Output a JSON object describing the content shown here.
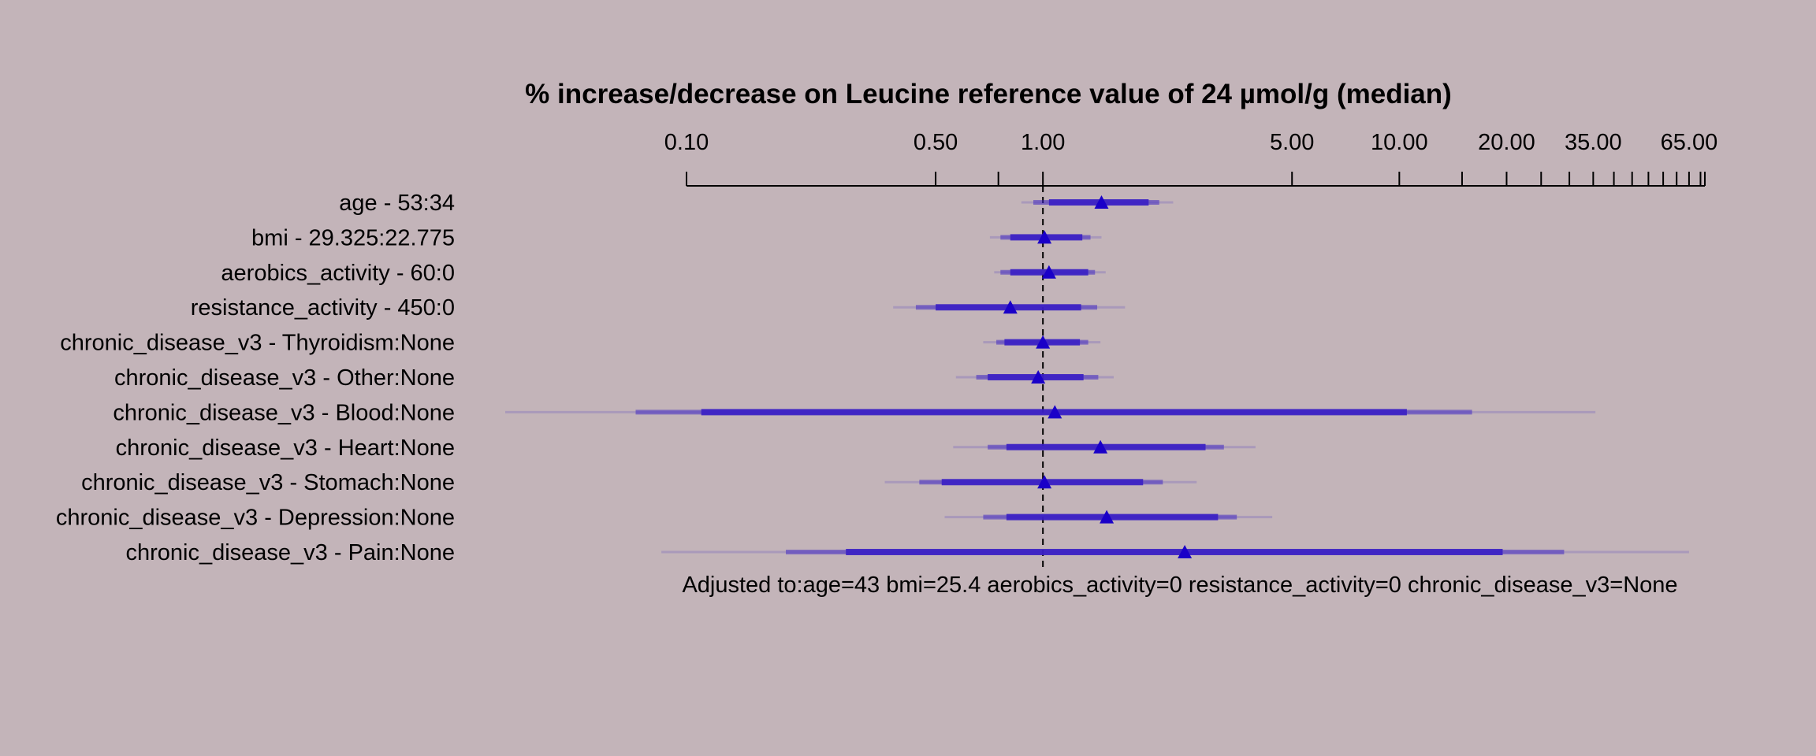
{
  "chart_data": {
    "type": "forest",
    "title": "% increase/decrease on Leucine reference value of 24 µmol/g (median)",
    "x_scale": "log",
    "xlim": [
      0.1,
      72
    ],
    "reference_line": 1.0,
    "tick_labels": [
      "0.10",
      "0.50",
      "1.00",
      "5.00",
      "10.00",
      "20.00",
      "35.00",
      "65.00"
    ],
    "tick_values": [
      0.1,
      0.5,
      1.0,
      5.0,
      10.0,
      20.0,
      35.0,
      65.0
    ],
    "minor_ticks": [
      0.75,
      15,
      25,
      30,
      40,
      45,
      50,
      55,
      60,
      70
    ],
    "marker_color": "#1a00c8",
    "bar_color": "#3a1fc4",
    "rows": [
      {
        "label": "age - 53:34",
        "estimate": 1.46,
        "ci_50": [
          1.04,
          1.98
        ],
        "ci_90": [
          0.94,
          2.12
        ],
        "ci_99": [
          0.87,
          2.32
        ]
      },
      {
        "label": "bmi - 29.325:22.775",
        "estimate": 1.01,
        "ci_50": [
          0.81,
          1.29
        ],
        "ci_90": [
          0.76,
          1.36
        ],
        "ci_99": [
          0.71,
          1.46
        ]
      },
      {
        "label": "aerobics_activity - 60:0",
        "estimate": 1.04,
        "ci_50": [
          0.81,
          1.34
        ],
        "ci_90": [
          0.76,
          1.4
        ],
        "ci_99": [
          0.73,
          1.5
        ]
      },
      {
        "label": "resistance_activity - 450:0",
        "estimate": 0.81,
        "ci_50": [
          0.5,
          1.28
        ],
        "ci_90": [
          0.44,
          1.42
        ],
        "ci_99": [
          0.38,
          1.7
        ]
      },
      {
        "label": "chronic_disease_v3 - Thyroidism:None",
        "estimate": 1.0,
        "ci_50": [
          0.78,
          1.27
        ],
        "ci_90": [
          0.74,
          1.34
        ],
        "ci_99": [
          0.68,
          1.45
        ]
      },
      {
        "label": "chronic_disease_v3 - Other:None",
        "estimate": 0.97,
        "ci_50": [
          0.7,
          1.3
        ],
        "ci_90": [
          0.65,
          1.43
        ],
        "ci_99": [
          0.57,
          1.58
        ]
      },
      {
        "label": "chronic_disease_v3 - Blood:None",
        "estimate": 1.08,
        "ci_50": [
          0.11,
          10.5
        ],
        "ci_90": [
          0.072,
          16.0
        ],
        "ci_99": [
          0.031,
          35.5
        ]
      },
      {
        "label": "chronic_disease_v3 - Heart:None",
        "estimate": 1.45,
        "ci_50": [
          0.79,
          2.86
        ],
        "ci_90": [
          0.7,
          3.22
        ],
        "ci_99": [
          0.56,
          3.95
        ]
      },
      {
        "label": "chronic_disease_v3 - Stomach:None",
        "estimate": 1.01,
        "ci_50": [
          0.52,
          1.91
        ],
        "ci_90": [
          0.45,
          2.17
        ],
        "ci_99": [
          0.36,
          2.7
        ]
      },
      {
        "label": "chronic_disease_v3 - Depression:None",
        "estimate": 1.51,
        "ci_50": [
          0.79,
          3.1
        ],
        "ci_90": [
          0.68,
          3.5
        ],
        "ci_99": [
          0.53,
          4.4
        ]
      },
      {
        "label": "chronic_disease_v3 - Pain:None",
        "estimate": 2.5,
        "ci_50": [
          0.28,
          19.5
        ],
        "ci_90": [
          0.19,
          29.0
        ],
        "ci_99": [
          0.085,
          65.0
        ]
      }
    ],
    "footnote": "Adjusted to:age=43 bmi=25.4 aerobics_activity=0 resistance_activity=0 chronic_disease_v3=None"
  }
}
